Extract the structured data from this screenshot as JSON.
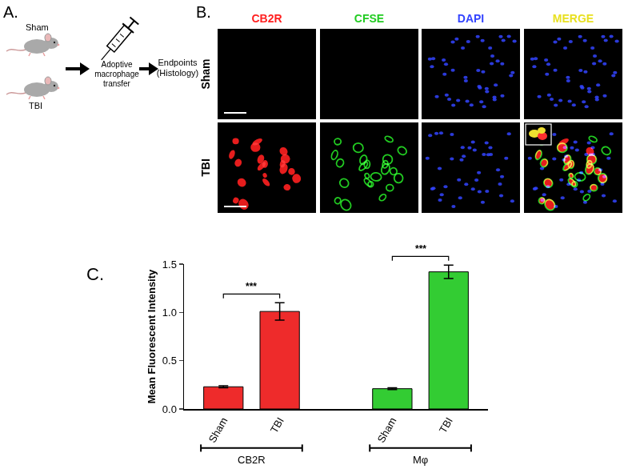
{
  "panel_a": {
    "label": "A.",
    "groups": [
      "Sham",
      "TBI"
    ],
    "step": "Adoptive macrophage transfer",
    "endpoint": "Endpoints (Histology)"
  },
  "panel_b": {
    "label": "B.",
    "channels": [
      {
        "name": "CB2R",
        "color": "#ff2020"
      },
      {
        "name": "CFSE",
        "color": "#22cc22"
      },
      {
        "name": "DAPI",
        "color": "#3344ff"
      },
      {
        "name": "MERGE",
        "color": "#e8e020"
      }
    ],
    "rows": [
      "Sham",
      "TBI"
    ]
  },
  "panel_c": {
    "label": "C."
  },
  "chart_data": {
    "type": "bar",
    "y_label": "Mean Fluorescent Intensity",
    "ylim": [
      0,
      1.5
    ],
    "yticks": [
      {
        "value": 0,
        "label": "0.0"
      },
      {
        "value": 0.5,
        "label": "0.5"
      },
      {
        "value": 1,
        "label": "1.0"
      },
      {
        "value": 1.5,
        "label": "1.5"
      }
    ],
    "grid": false,
    "series": [
      {
        "name": "CB2R",
        "color": "#ee2b2b",
        "categories": [
          "Sham",
          "TBI"
        ],
        "values": [
          0.23,
          1.01
        ],
        "errors": [
          0.01,
          0.09
        ],
        "significance": "***"
      },
      {
        "name": "Mφ",
        "color": "#33cc33",
        "categories": [
          "Sham",
          "TBI"
        ],
        "values": [
          0.21,
          1.42
        ],
        "errors": [
          0.01,
          0.07
        ],
        "significance": "***"
      }
    ]
  }
}
